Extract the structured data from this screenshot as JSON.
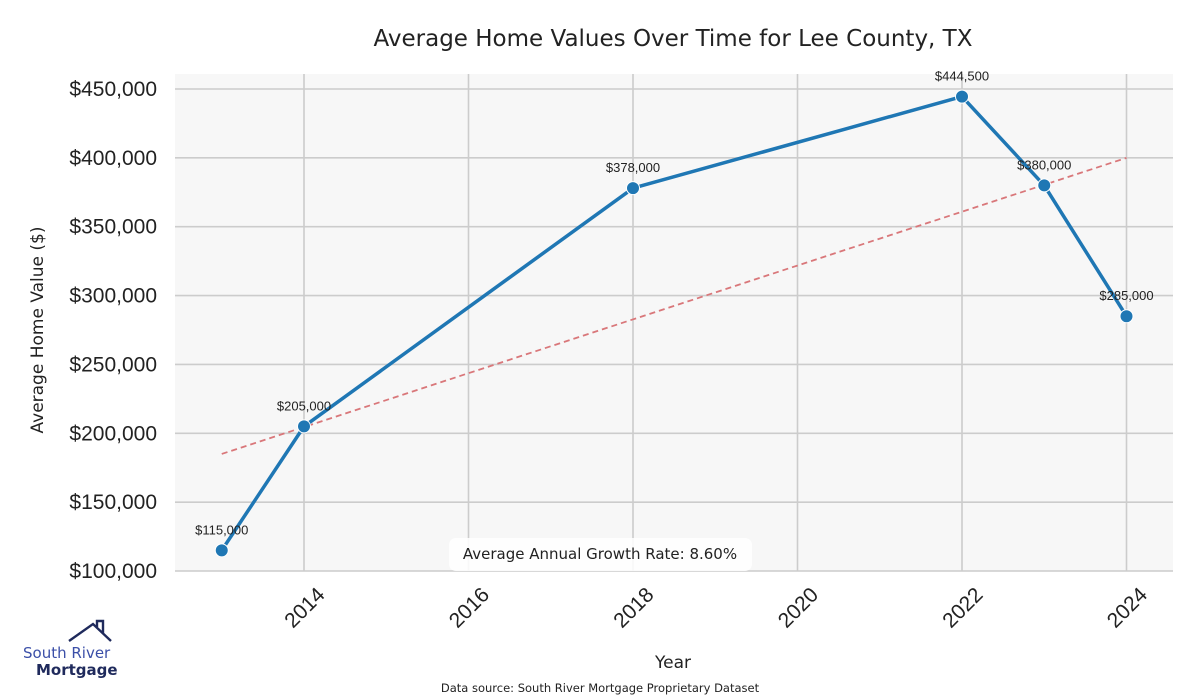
{
  "chart_data": {
    "type": "line",
    "title": "Average Home Values Over Time for Lee County, TX",
    "xlabel": "Year",
    "ylabel": "Average Home Value ($)",
    "xlim": [
      2012.45,
      2024.58
    ],
    "ylim": [
      100000,
      460000
    ],
    "x_ticks": [
      2014,
      2016,
      2018,
      2020,
      2022,
      2024
    ],
    "x_tick_labels": [
      "2014",
      "2016",
      "2018",
      "2020",
      "2022",
      "2024"
    ],
    "y_ticks": [
      100000,
      150000,
      200000,
      250000,
      300000,
      350000,
      400000,
      450000
    ],
    "y_tick_labels": [
      "$100,000",
      "$150,000",
      "$200,000",
      "$250,000",
      "$300,000",
      "$350,000",
      "$400,000",
      "$450,000"
    ],
    "grid": true,
    "series": [
      {
        "name": "Average Home Value",
        "color": "#1f77b4",
        "x": [
          2013,
          2014,
          2018,
          2022,
          2023,
          2024
        ],
        "y": [
          115000,
          205000,
          378000,
          444500,
          380000,
          285000
        ],
        "labels": [
          "$115,000",
          "$205,000",
          "$378,000",
          "$444,500",
          "$380,000",
          "$285,000"
        ]
      },
      {
        "name": "Trend",
        "color": "#d9777a",
        "style": "dashed",
        "x": [
          2013,
          2024
        ],
        "y": [
          185000,
          400000
        ]
      }
    ],
    "annotation": "Average Annual Growth Rate: 8.60%",
    "source": "Data source: South River Mortgage Proprietary Dataset"
  },
  "logo": {
    "line1": "South River",
    "line2": "Mortgage"
  },
  "colors": {
    "plot_bg": "#f7f7f7",
    "grid": "#cccccc",
    "line": "#1f77b4",
    "trend": "#d9777a",
    "logo_accent": "#3b4fa8",
    "logo_dark": "#1f2a5c"
  }
}
